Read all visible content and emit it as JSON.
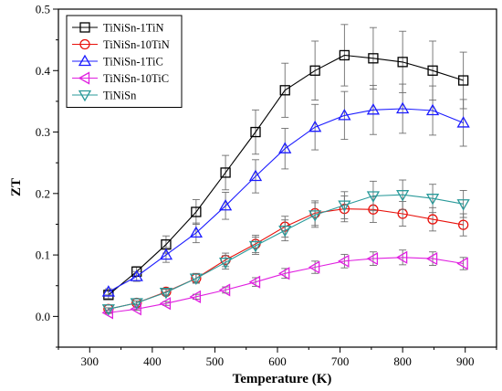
{
  "chart_data": {
    "type": "line",
    "xlabel": "Temperature (K)",
    "ylabel": "ZT",
    "xlim": [
      250,
      950
    ],
    "ylim": [
      -0.05,
      0.5
    ],
    "x_ticks": [
      300,
      400,
      500,
      600,
      700,
      800,
      900
    ],
    "y_ticks": [
      0.0,
      0.1,
      0.2,
      0.3,
      0.4,
      0.5
    ],
    "x_tick_labels": [
      "300",
      "400",
      "500",
      "600",
      "700",
      "800",
      "900"
    ],
    "y_tick_labels": [
      "0.0",
      "0.1",
      "0.2",
      "0.3",
      "0.4",
      "0.5"
    ],
    "legend_position": "top-left",
    "grid": false,
    "x": [
      330,
      375,
      422,
      470,
      517,
      565,
      612,
      660,
      707,
      753,
      800,
      848,
      897
    ],
    "series": [
      {
        "name": "TiNiSn-1TiN",
        "color": "#000000",
        "marker": "square",
        "values": [
          0.035,
          0.073,
          0.117,
          0.17,
          0.234,
          0.3,
          0.368,
          0.4,
          0.425,
          0.42,
          0.414,
          0.4,
          0.384
        ],
        "errors": [
          0.006,
          0.008,
          0.014,
          0.02,
          0.028,
          0.036,
          0.044,
          0.048,
          0.05,
          0.05,
          0.05,
          0.048,
          0.046
        ]
      },
      {
        "name": "TiNiSn-10TiN",
        "color": "#e8120c",
        "marker": "circle",
        "values": [
          0.012,
          0.022,
          0.04,
          0.062,
          0.092,
          0.118,
          0.146,
          0.168,
          0.175,
          0.174,
          0.167,
          0.158,
          0.149
        ],
        "errors": [
          0.002,
          0.003,
          0.005,
          0.008,
          0.011,
          0.014,
          0.017,
          0.02,
          0.021,
          0.021,
          0.02,
          0.019,
          0.018
        ]
      },
      {
        "name": "TiNiSn-1TiC",
        "color": "#1c1cff",
        "marker": "triangle-up",
        "values": [
          0.04,
          0.065,
          0.1,
          0.136,
          0.18,
          0.228,
          0.273,
          0.308,
          0.327,
          0.336,
          0.338,
          0.335,
          0.315
        ],
        "errors": [
          0.005,
          0.008,
          0.012,
          0.016,
          0.022,
          0.027,
          0.033,
          0.037,
          0.039,
          0.04,
          0.04,
          0.04,
          0.038
        ]
      },
      {
        "name": "TiNiSn-10TiC",
        "color": "#e020e0",
        "marker": "triangle-left",
        "values": [
          0.006,
          0.012,
          0.021,
          0.032,
          0.043,
          0.056,
          0.07,
          0.08,
          0.09,
          0.094,
          0.096,
          0.094,
          0.086
        ],
        "errors": [
          0.001,
          0.002,
          0.003,
          0.004,
          0.005,
          0.007,
          0.008,
          0.01,
          0.011,
          0.011,
          0.012,
          0.011,
          0.01
        ]
      },
      {
        "name": "TiNiSn",
        "color": "#2a9a9a",
        "marker": "triangle-down",
        "values": [
          0.012,
          0.022,
          0.039,
          0.062,
          0.088,
          0.115,
          0.14,
          0.165,
          0.181,
          0.196,
          0.198,
          0.192,
          0.183
        ],
        "errors": [
          0.002,
          0.003,
          0.005,
          0.007,
          0.011,
          0.014,
          0.017,
          0.02,
          0.022,
          0.024,
          0.024,
          0.023,
          0.022
        ]
      }
    ]
  }
}
